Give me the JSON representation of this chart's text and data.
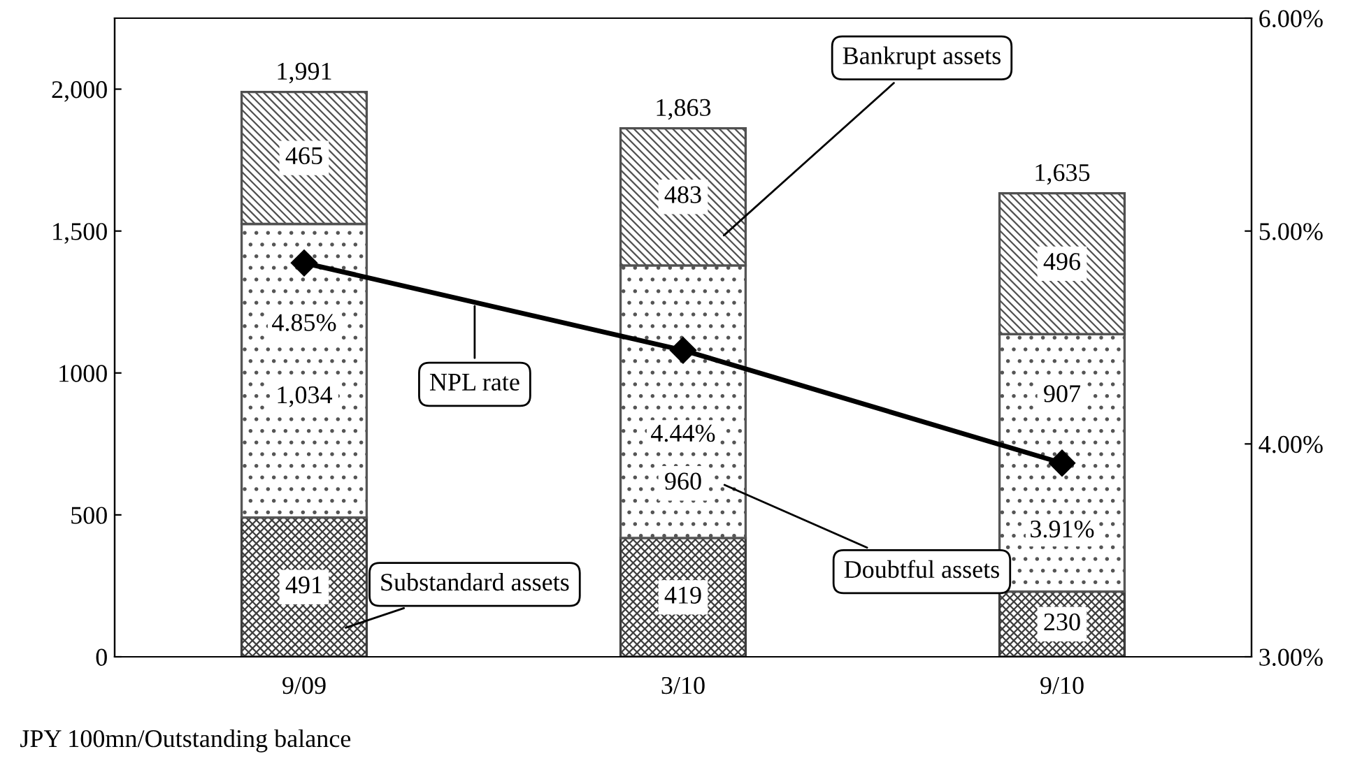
{
  "chart_data": {
    "type": "bar",
    "stacked": true,
    "categories": [
      "9/09",
      "3/10",
      "9/10"
    ],
    "series": [
      {
        "name": "Substandard assets",
        "color": "#3c3c3c",
        "values": [
          491,
          419,
          230
        ],
        "value_labels": [
          "491",
          "419",
          "230"
        ]
      },
      {
        "name": "Doubtful assets",
        "color": "#555555",
        "values": [
          1034,
          960,
          907
        ],
        "value_labels": [
          "1,034",
          "960",
          "907"
        ]
      },
      {
        "name": "Bankrupt assets",
        "color": "#505050",
        "values": [
          465,
          483,
          496
        ],
        "value_labels": [
          "465",
          "483",
          "496"
        ]
      },
      {
        "name": "NPL rate",
        "type": "line",
        "axis": "y2",
        "color": "#000000",
        "values": [
          4.85,
          4.44,
          3.91
        ],
        "value_labels": [
          "4.85%",
          "4.44%",
          "3.91%"
        ],
        "marker": "diamond",
        "line_style": "solid"
      }
    ],
    "totals": [
      "1,991",
      "1,863",
      "1,635"
    ],
    "ylim": [
      0,
      2250
    ],
    "yticks": [
      0,
      500,
      1000,
      {
        "value": 1500,
        "label": "1,500"
      },
      {
        "value": 2000,
        "label": "2,000"
      }
    ],
    "y2lim": [
      3,
      6
    ],
    "y2ticks": [
      {
        "value": 3,
        "label": "3.00%"
      },
      {
        "value": 4,
        "label": "4.00%"
      },
      {
        "value": 5,
        "label": "5.00%"
      },
      {
        "value": 6,
        "label": "6.00%"
      }
    ],
    "grid": false,
    "legend": false,
    "annotations": [
      "JPY 100mn/Outstanding balance"
    ]
  }
}
